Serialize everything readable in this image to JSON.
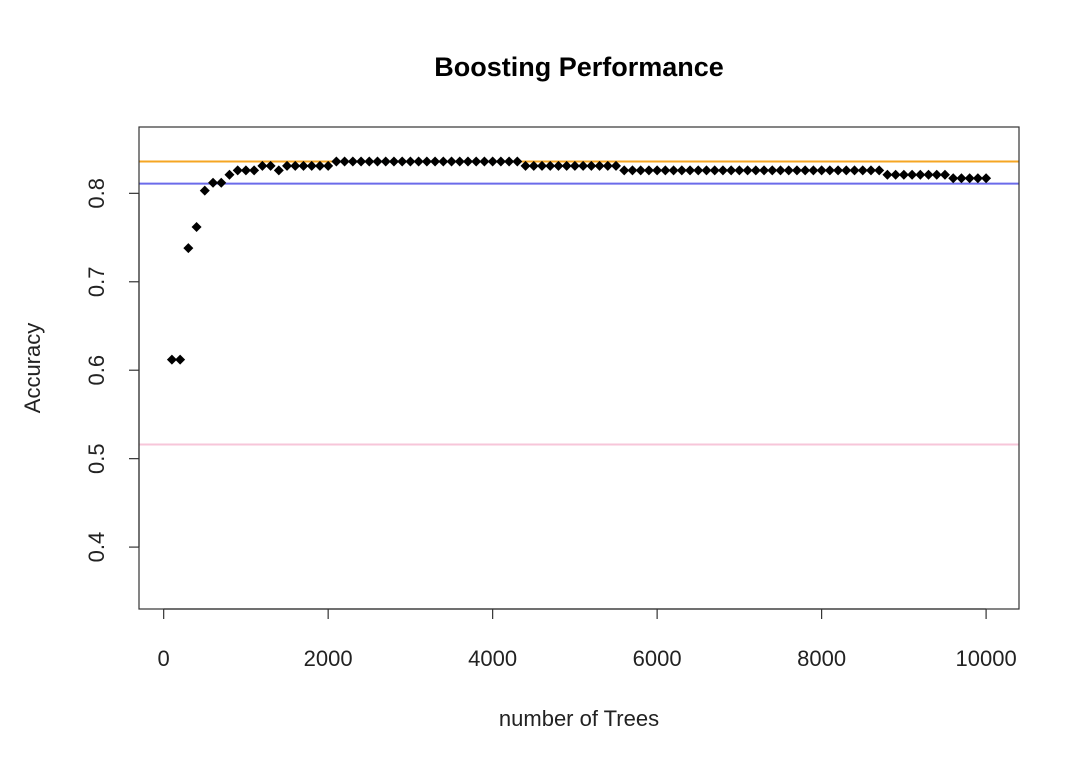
{
  "chart_data": {
    "type": "scatter",
    "title": "Boosting Performance",
    "xlabel": "number of Trees",
    "ylabel": "Accuracy",
    "xlim": [
      -300,
      10400
    ],
    "ylim": [
      0.33,
      0.875
    ],
    "xticks": [
      0,
      2000,
      4000,
      6000,
      8000,
      10000
    ],
    "yticks": [
      0.4,
      0.5,
      0.6,
      0.7,
      0.8
    ],
    "xtick_labels": [
      "0",
      "2000",
      "4000",
      "6000",
      "8000",
      "10000"
    ],
    "ytick_labels": [
      "0.4",
      "0.5",
      "0.6",
      "0.7",
      "0.8"
    ],
    "marker": "filled-diamond",
    "marker_color": "#000000",
    "reference_lines": [
      {
        "y": 0.836,
        "color": "#f5a623"
      },
      {
        "y": 0.811,
        "color": "#6b6bea"
      },
      {
        "y": 0.516,
        "color": "#f7c6d9"
      }
    ],
    "series": [
      {
        "x": [
          100,
          200,
          300,
          400,
          500,
          600,
          700,
          800,
          900,
          1000,
          1100,
          1200,
          1300,
          1400,
          1500,
          1600,
          1700,
          1800,
          1900,
          2000,
          2100,
          2200,
          2300,
          2400,
          2500,
          2600,
          2700,
          2800,
          2900,
          3000,
          3100,
          3200,
          3300,
          3400,
          3500,
          3600,
          3700,
          3800,
          3900,
          4000,
          4100,
          4200,
          4300,
          4400,
          4500,
          4600,
          4700,
          4800,
          4900,
          5000,
          5100,
          5200,
          5300,
          5400,
          5500,
          5600,
          5700,
          5800,
          5900,
          6000,
          6100,
          6200,
          6300,
          6400,
          6500,
          6600,
          6700,
          6800,
          6900,
          7000,
          7100,
          7200,
          7300,
          7400,
          7500,
          7600,
          7700,
          7800,
          7900,
          8000,
          8100,
          8200,
          8300,
          8400,
          8500,
          8600,
          8700,
          8800,
          8900,
          9000,
          9100,
          9200,
          9300,
          9400,
          9500,
          9600,
          9700,
          9800,
          9900,
          10000
        ],
        "y": [
          0.612,
          0.612,
          0.738,
          0.762,
          0.803,
          0.812,
          0.812,
          0.821,
          0.826,
          0.826,
          0.826,
          0.831,
          0.831,
          0.826,
          0.831,
          0.831,
          0.831,
          0.831,
          0.831,
          0.831,
          0.836,
          0.836,
          0.836,
          0.836,
          0.836,
          0.836,
          0.836,
          0.836,
          0.836,
          0.836,
          0.836,
          0.836,
          0.836,
          0.836,
          0.836,
          0.836,
          0.836,
          0.836,
          0.836,
          0.836,
          0.836,
          0.836,
          0.836,
          0.831,
          0.831,
          0.831,
          0.831,
          0.831,
          0.831,
          0.831,
          0.831,
          0.831,
          0.831,
          0.831,
          0.831,
          0.826,
          0.826,
          0.826,
          0.826,
          0.826,
          0.826,
          0.826,
          0.826,
          0.826,
          0.826,
          0.826,
          0.826,
          0.826,
          0.826,
          0.826,
          0.826,
          0.826,
          0.826,
          0.826,
          0.826,
          0.826,
          0.826,
          0.826,
          0.826,
          0.826,
          0.826,
          0.826,
          0.826,
          0.826,
          0.826,
          0.826,
          0.826,
          0.821,
          0.821,
          0.821,
          0.821,
          0.821,
          0.821,
          0.821,
          0.821,
          0.817,
          0.817,
          0.817,
          0.817,
          0.817
        ]
      }
    ]
  }
}
